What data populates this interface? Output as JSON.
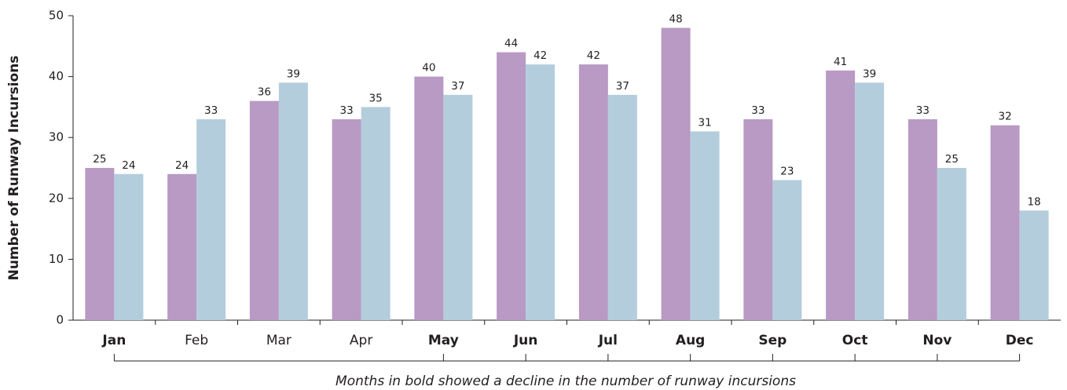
{
  "chart_data": {
    "type": "bar",
    "y_label": "Number of Runway Incursions",
    "annotation": "Months in bold showed a decline in the number of runway incursions",
    "categories": [
      "Jan",
      "Feb",
      "Mar",
      "Apr",
      "May",
      "Jun",
      "Jul",
      "Aug",
      "Sep",
      "Oct",
      "Nov",
      "Dec"
    ],
    "bold_categories": [
      true,
      false,
      false,
      false,
      true,
      true,
      true,
      true,
      true,
      true,
      true,
      true
    ],
    "series": [
      {
        "color": "#b89ac4",
        "values": [
          25,
          24,
          36,
          33,
          40,
          44,
          42,
          48,
          33,
          41,
          33,
          32
        ]
      },
      {
        "color": "#b4cddd",
        "values": [
          24,
          33,
          39,
          35,
          37,
          42,
          37,
          31,
          23,
          39,
          25,
          18
        ]
      }
    ],
    "ylim": [
      0,
      50
    ],
    "yticks": [
      0,
      10,
      20,
      30,
      40,
      50
    ],
    "grid": false
  }
}
